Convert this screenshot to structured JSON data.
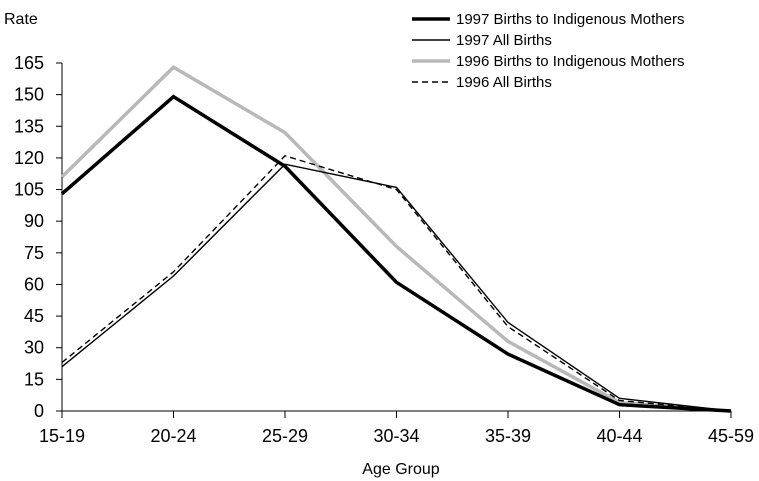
{
  "chart_data": {
    "type": "line",
    "ylabel": "Rate",
    "xlabel": "Age Group",
    "categories": [
      "15-19",
      "20-24",
      "25-29",
      "30-34",
      "35-39",
      "40-44",
      "45-59"
    ],
    "ylim": [
      0,
      165
    ],
    "yticks": [
      0,
      15,
      30,
      45,
      60,
      75,
      90,
      105,
      120,
      135,
      150,
      165
    ],
    "yticks_label": [
      "0",
      "15",
      "30",
      "45",
      "60",
      "75",
      "90",
      "105",
      "120",
      "135",
      "150",
      "165"
    ],
    "legend_position": "top-right",
    "grid": false,
    "series": [
      {
        "name": "1997 Births to Indigenous Mothers",
        "values": [
          103,
          149,
          116,
          61,
          27,
          3,
          0
        ],
        "color": "#000000",
        "style": "solid-thick"
      },
      {
        "name": "1997 All Births",
        "values": [
          21,
          64,
          117,
          106,
          42,
          6,
          0
        ],
        "color": "#000000",
        "style": "solid-thin"
      },
      {
        "name": "1996 Births to Indigenous Mothers",
        "values": [
          111,
          163,
          132,
          78,
          33,
          4,
          0
        ],
        "color": "#b8b8b8",
        "style": "solid-thick"
      },
      {
        "name": "1996 All Births",
        "values": [
          23,
          66,
          121,
          105,
          40,
          5,
          0
        ],
        "color": "#000000",
        "style": "dashed-thin"
      }
    ]
  }
}
